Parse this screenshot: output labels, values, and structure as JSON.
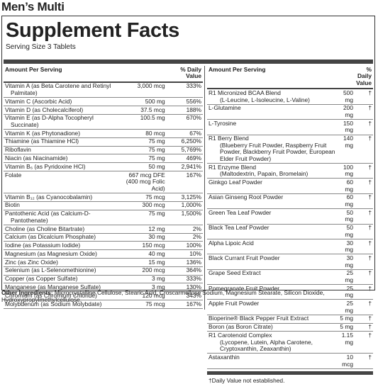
{
  "header": {
    "title": "Men’s Multi"
  },
  "facts": {
    "title": "Supplement Facts",
    "serving_size": "Serving Size 3 Tablets",
    "amount_header": "Amount Per Serving",
    "dv_header": "% Daily Value",
    "left_rows": [
      {
        "name": "Vitamin A (as Beta Carotene and Retinyl Palmitate)",
        "amount": "3,000 mcg",
        "dv": "333%"
      },
      {
        "name": "Vitamin C (Ascorbic Acid)",
        "amount": "500 mg",
        "dv": "556%"
      },
      {
        "name": "Vitamin D (as Cholecalciferol)",
        "amount": "37.5 mcg",
        "dv": "188%"
      },
      {
        "name": "Vitamin E (as D-Alpha Tocopheryl Succinate)",
        "amount": "100.5 mg",
        "dv": "670%"
      },
      {
        "name": "Vitamin K (as Phytonadione)",
        "amount": "80 mcg",
        "dv": "67%"
      },
      {
        "name": "Thiamine (as Thiamine HCl)",
        "amount": "75 mg",
        "dv": "6,250%"
      },
      {
        "name": "Riboflavin",
        "amount": "75 mg",
        "dv": "5,769%"
      },
      {
        "name": "Niacin (as Niacinamide)",
        "amount": "75 mg",
        "dv": "469%"
      },
      {
        "name": "Vitamin B₆ (as Pyridoxine HCl)",
        "amount": "50 mg",
        "dv": "2,941%"
      },
      {
        "name": "Folate",
        "amount": "667 mcg DFE",
        "amount_detail": "(400 mcg Folic Acid)",
        "dv": "167%"
      },
      {
        "name": "Vitamin B₁₂ (as Cyanocobalamin)",
        "amount": "75 mcg",
        "dv": "3,125%"
      },
      {
        "name": "Biotin",
        "amount": "300 mcg",
        "dv": "1,000%"
      },
      {
        "name": "Pantothenic Acid (as Calcium-D-Pantothenate)",
        "amount": "75 mg",
        "dv": "1,500%"
      },
      {
        "name": "Choline (as Choline Bitartrate)",
        "amount": "12 mg",
        "dv": "2%"
      },
      {
        "name": "Calcium (as Dicalcium Phosphate)",
        "amount": "30 mg",
        "dv": "2%"
      },
      {
        "name": "Iodine (as Potassium Iodide)",
        "amount": "150 mcg",
        "dv": "100%"
      },
      {
        "name": "Magnesium (as Magnesium Oxide)",
        "amount": "40 mg",
        "dv": "10%"
      },
      {
        "name": "Zinc (as Zinc Oxide)",
        "amount": "15 mg",
        "dv": "136%"
      },
      {
        "name": "Selenium (as L-Selenomethionine)",
        "amount": "200 mcg",
        "dv": "364%"
      },
      {
        "name": "Copper (as Copper Sulfate)",
        "amount": "3 mg",
        "dv": "333%"
      },
      {
        "name": "Manganese (as Manganese Sulfate)",
        "amount": "3 mg",
        "dv": "130%"
      },
      {
        "name": "Chromium (as Chromium Chloride)",
        "amount": "120 mcg",
        "dv": "343%"
      },
      {
        "name": "Molybdenum (as Sodium Molybdate)",
        "amount": "75 mcg",
        "dv": "167%"
      }
    ],
    "right_rows": [
      {
        "name": "R1 Micronized BCAA Blend",
        "detail": "(L-Leucine, L-Isoleucine, L-Valine)",
        "amount": "500 mg",
        "dv": "†"
      },
      {
        "name": "L-Glutamine",
        "amount": "200 mg",
        "dv": "†"
      },
      {
        "name": "L-Tyrosine",
        "amount": "150 mg",
        "dv": "†"
      },
      {
        "name": "R1 Berry Blend",
        "detail": "(Blueberry Fruit Powder, Raspberry Fruit Powder, Blackberry Fruit Powder, European Elder Fruit Powder)",
        "amount": "140 mg",
        "dv": "†"
      },
      {
        "name": "R1 Enzyme Blend",
        "detail": "(Maltodextrin, Papain, Bromelain)",
        "amount": "100 mg",
        "dv": "†"
      },
      {
        "name": "Ginkgo Leaf Powder",
        "amount": "60 mg",
        "dv": "†"
      },
      {
        "name": "Asian Ginseng Root Powder",
        "amount": "60 mg",
        "dv": "†"
      },
      {
        "name": "Green Tea Leaf Powder",
        "amount": "50 mg",
        "dv": "†"
      },
      {
        "name": "Black Tea Leaf Powder",
        "amount": "50 mg",
        "dv": "†"
      },
      {
        "name": "Alpha Lipoic Acid",
        "amount": "30 mg",
        "dv": "†"
      },
      {
        "name": "Black Currant Fruit Powder",
        "amount": "30 mg",
        "dv": "†"
      },
      {
        "name": "Grape Seed Extract",
        "amount": "25 mg",
        "dv": "†"
      },
      {
        "name": "Pomegranate Fruit Powder",
        "amount": "25 mg",
        "dv": "†"
      },
      {
        "name": "Apple Fruit Powder",
        "amount": "25 mg",
        "dv": "†"
      },
      {
        "name": "Bioperine® Black Pepper Fruit Extract",
        "amount": "5 mg",
        "dv": "†"
      },
      {
        "name": "Boron (as Boron Citrate)",
        "amount": "5 mg",
        "dv": "†"
      },
      {
        "name": "R1 Carotenoid Complex",
        "detail": "(Lycopene, Lutein, Alpha Carotene, Cryptoxanthin, Zeaxanthin)",
        "amount": "1.15 mg",
        "dv": "†"
      },
      {
        "name": "Astaxanthin",
        "amount": "10 mcg",
        "dv": "†"
      }
    ],
    "footnote": "†Daily Value not established."
  },
  "other_ingredients": {
    "label": "Other Ingredients:",
    "text": "Microcrystalline Cellulose, Stearic Acid, Croscarmellose Sodium, Magnesium Stearate, Silicon Dioxide, Hydroxypropylmethylcellulose."
  }
}
